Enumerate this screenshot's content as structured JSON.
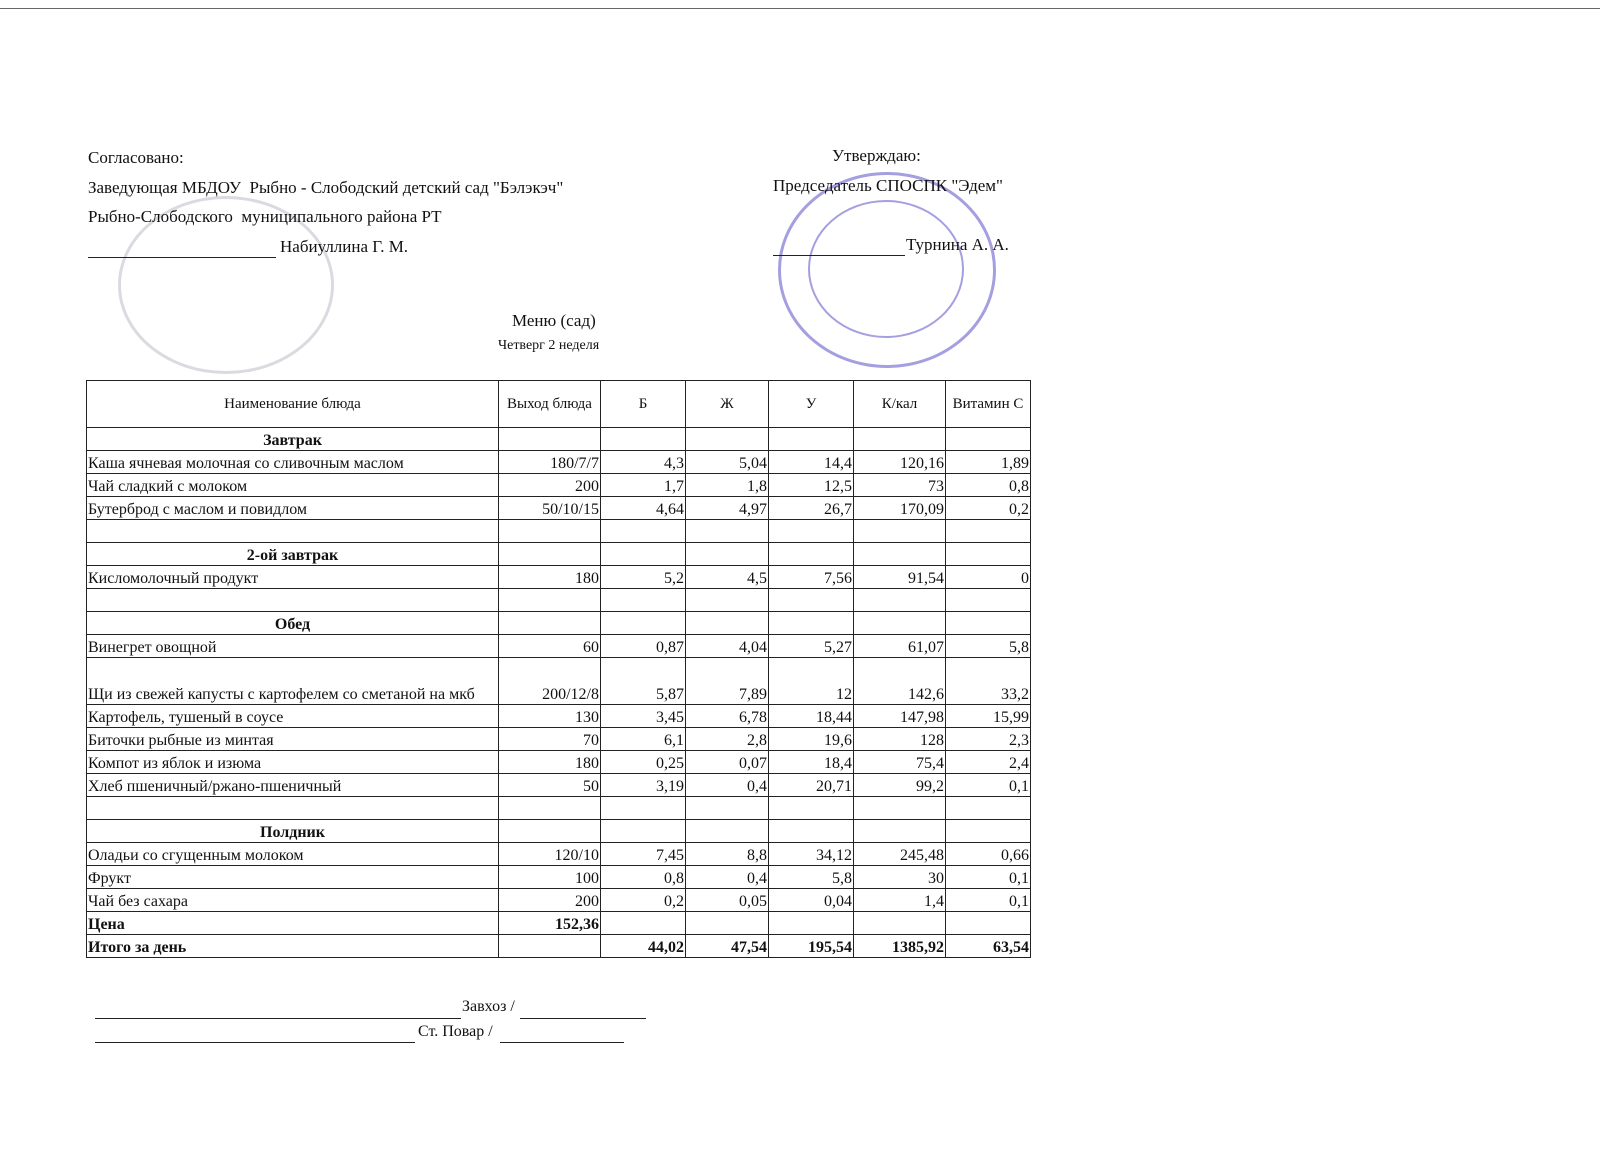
{
  "header": {
    "left": [
      "Согласовано:",
      "Заведующая МБДОУ  Рыбно - Слободский детский сад \"Бэлэкэч\"",
      "Рыбно-Слободского  муниципального района РТ"
    ],
    "left_signer": "Набиуллина Г. М.",
    "right": [
      "Утверждаю:",
      "Председатель СПОСПК \"Эдем\""
    ],
    "right_signer": "Турнина А. А."
  },
  "title": "Меню (сад)",
  "subtitle": "Четверг 2 неделя",
  "table": {
    "header": [
      "Наименование блюда",
      "Выход блюда",
      "Б",
      "Ж",
      "У",
      "К/кал",
      "Витамин С"
    ],
    "sections": [
      {
        "title": "Завтрак",
        "rows": [
          [
            "Каша ячневая молочная со сливочным маслом",
            "180/7/7",
            "4,3",
            "5,04",
            "14,4",
            "120,16",
            "1,89"
          ],
          [
            "Чай сладкий с молоком",
            "200",
            "1,7",
            "1,8",
            "12,5",
            "73",
            "0,8"
          ],
          [
            "Бутерброд с маслом и  повидлом",
            "50/10/15",
            "4,64",
            "4,97",
            "26,7",
            "170,09",
            "0,2"
          ],
          [
            null,
            null,
            null,
            null,
            null,
            null,
            null
          ]
        ]
      },
      {
        "title": "2-ой завтрак",
        "rows": [
          [
            "Кисломолочный продукт",
            "180",
            "5,2",
            "4,5",
            "7,56",
            "91,54",
            "0"
          ],
          [
            null,
            null,
            null,
            null,
            null,
            null,
            null
          ]
        ]
      },
      {
        "title": "Обед",
        "rows": [
          [
            "Винегрет овощной",
            "60",
            "0,87",
            "4,04",
            "5,27",
            "61,07",
            "5,8"
          ],
          [
            "Щи из свежей капусты с картофелем со сметаной на мкб",
            "200/12/8",
            "5,87",
            "7,89",
            "12",
            "142,6",
            "33,2"
          ],
          [
            "Картофель, тушеный в соусе",
            "130",
            "3,45",
            "6,78",
            "18,44",
            "147,98",
            "15,99"
          ],
          [
            "Биточки рыбные из минтая",
            "70",
            "6,1",
            "2,8",
            "19,6",
            "128",
            "2,3"
          ],
          [
            "Компот из яблок и изюма",
            "180",
            "0,25",
            "0,07",
            "18,4",
            "75,4",
            "2,4"
          ],
          [
            "Хлеб пшеничный/ржано-пшеничный",
            "50",
            "3,19",
            "0,4",
            "20,71",
            "99,2",
            "0,1"
          ],
          [
            null,
            null,
            null,
            null,
            null,
            null,
            null
          ]
        ]
      },
      {
        "title": "Полдник",
        "rows": [
          [
            "Оладьи со сгущенным молоком",
            "120/10",
            "7,45",
            "8,8",
            "34,12",
            "245,48",
            "0,66"
          ],
          [
            "Фрукт",
            "100",
            "0,8",
            "0,4",
            "5,8",
            "30",
            "0,1"
          ],
          [
            "Чай без сахара",
            "200",
            "0,2",
            "0,05",
            "0,04",
            "1,4",
            "0,1"
          ]
        ]
      }
    ],
    "footer": [
      [
        "Цена",
        "152,36",
        null,
        null,
        null,
        null,
        null
      ],
      [
        "Итого за день",
        null,
        "44,02",
        "47,54",
        "195,54",
        "1385,92",
        "63,54"
      ]
    ]
  },
  "signatures": [
    "Завхоз /",
    "Ст. Повар /"
  ]
}
